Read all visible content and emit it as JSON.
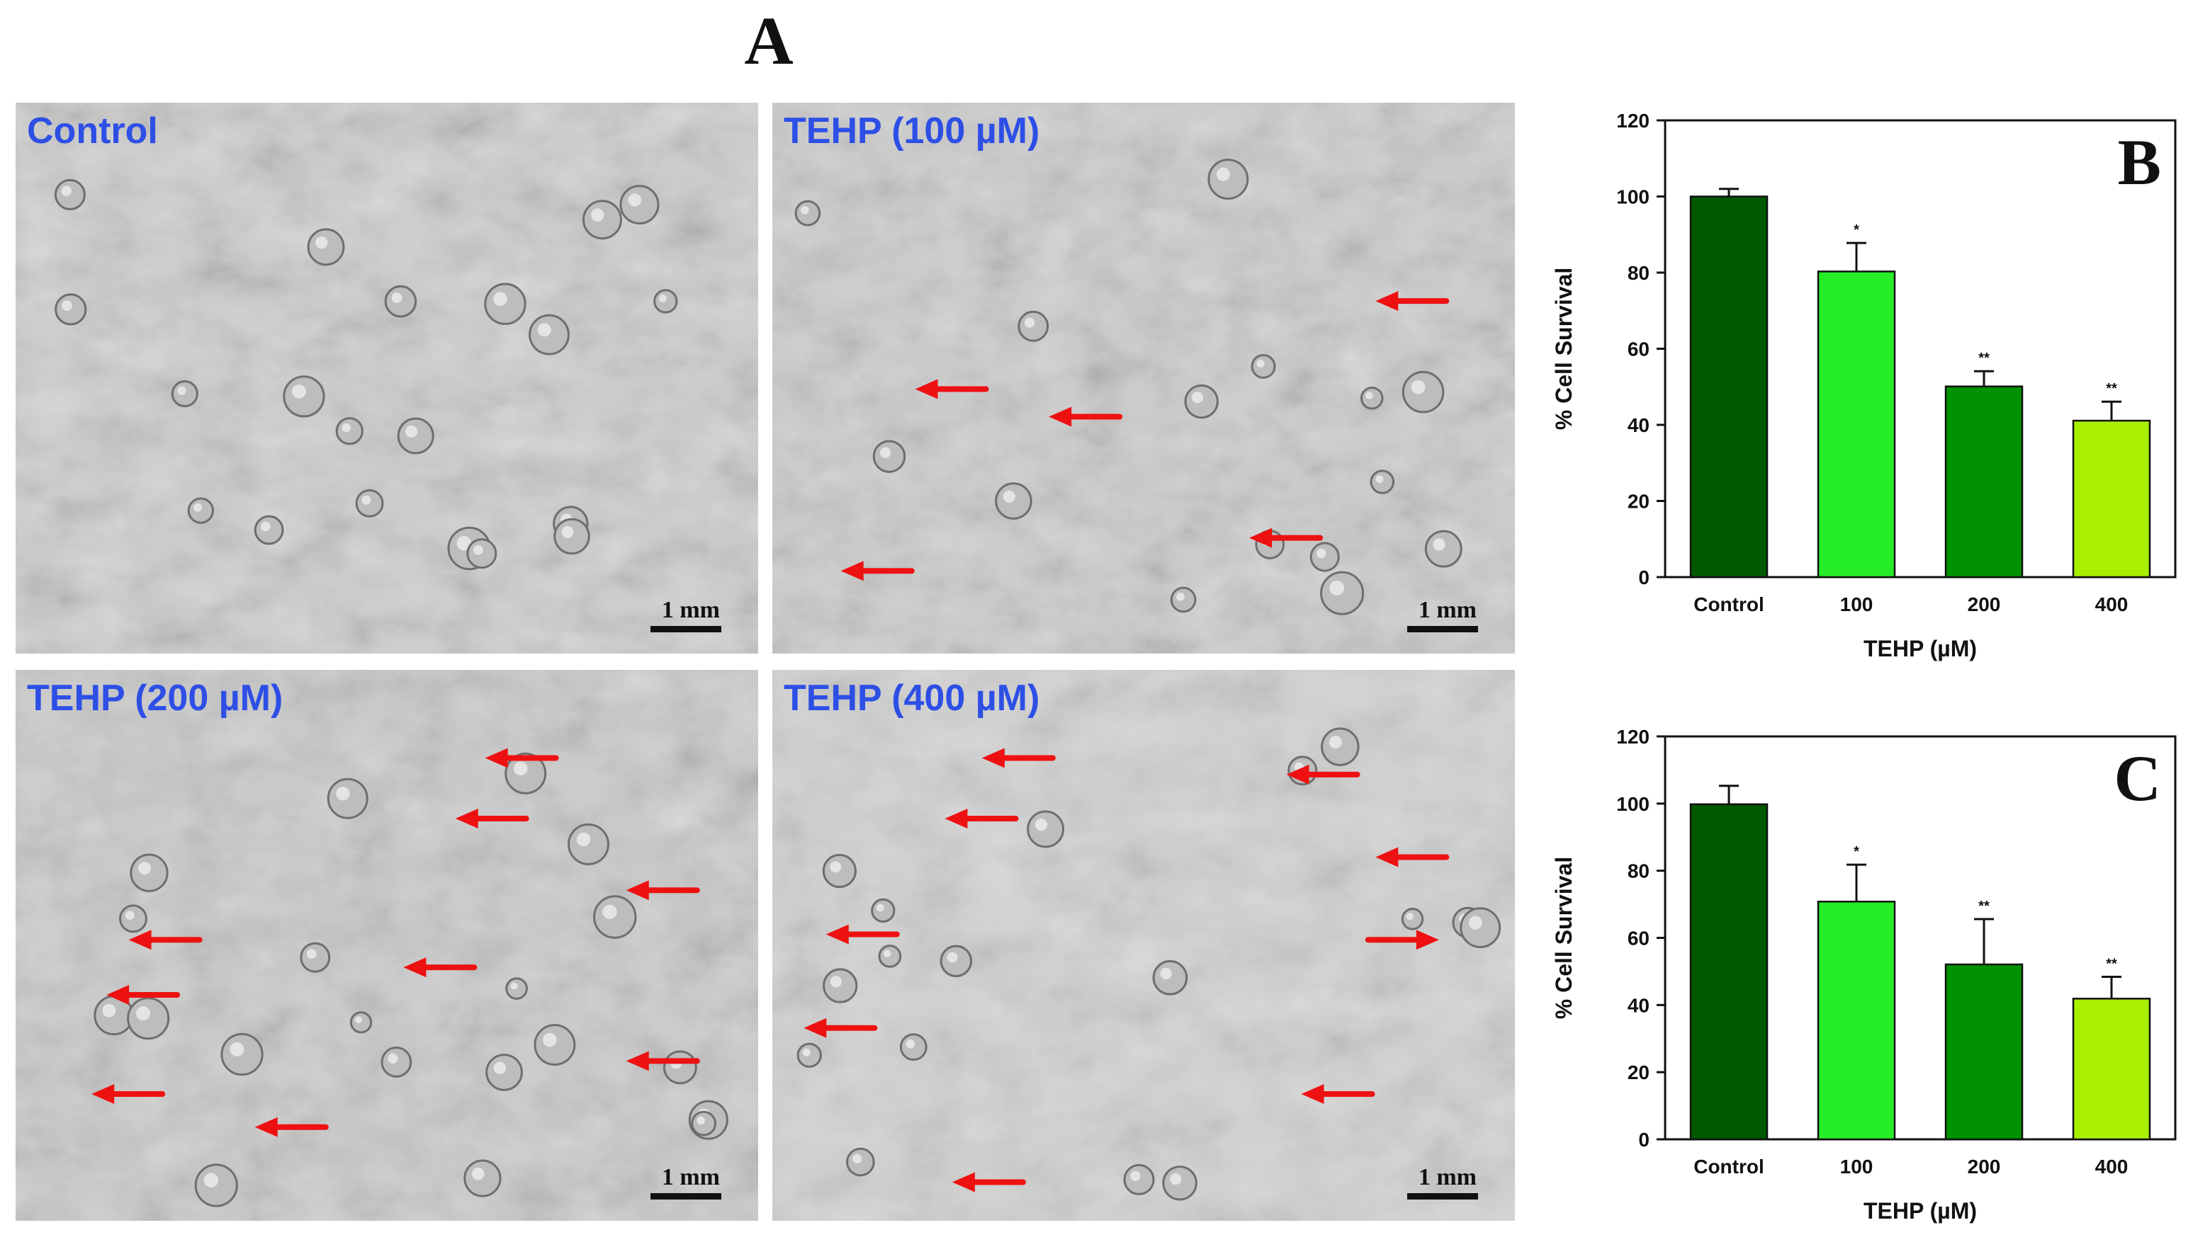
{
  "figure": {
    "panel_a_title": "A"
  },
  "panels": [
    {
      "label": "Control",
      "scale_label": "1 mm",
      "arrows": []
    },
    {
      "label": "TEHP (100 µM)",
      "scale_label": "1 mm",
      "arrows": [
        [
          0.86,
          0.36,
          "left"
        ],
        [
          0.24,
          0.52,
          "left"
        ],
        [
          0.42,
          0.57,
          "left"
        ],
        [
          0.69,
          0.79,
          "left"
        ],
        [
          0.14,
          0.85,
          "left"
        ]
      ]
    },
    {
      "label": "TEHP (200 µM)",
      "scale_label": "1 mm",
      "arrows": [
        [
          0.68,
          0.16,
          "left"
        ],
        [
          0.64,
          0.27,
          "left"
        ],
        [
          0.2,
          0.49,
          "left"
        ],
        [
          0.57,
          0.54,
          "left"
        ],
        [
          0.87,
          0.4,
          "left"
        ],
        [
          0.17,
          0.59,
          "left"
        ],
        [
          0.15,
          0.77,
          "left"
        ],
        [
          0.37,
          0.83,
          "left"
        ],
        [
          0.87,
          0.71,
          "left"
        ]
      ]
    },
    {
      "label": "TEHP (400 µM)",
      "scale_label": "1 mm",
      "arrows": [
        [
          0.33,
          0.16,
          "left"
        ],
        [
          0.28,
          0.27,
          "left"
        ],
        [
          0.74,
          0.19,
          "left"
        ],
        [
          0.86,
          0.34,
          "left"
        ],
        [
          0.12,
          0.48,
          "left"
        ],
        [
          0.85,
          0.49,
          "right"
        ],
        [
          0.09,
          0.65,
          "left"
        ],
        [
          0.76,
          0.77,
          "left"
        ],
        [
          0.29,
          0.93,
          "left"
        ]
      ]
    }
  ],
  "chart_data": [
    {
      "type": "bar",
      "panel_letter": "B",
      "categories": [
        "Control",
        "100",
        "200",
        "400"
      ],
      "values": [
        100,
        80.3,
        50.1,
        41.1
      ],
      "errors": [
        2,
        7.5,
        4,
        5
      ],
      "significance": [
        "",
        "*",
        "**",
        "**"
      ],
      "colors": [
        "#005800",
        "#26ee26",
        "#009200",
        "#a8f000"
      ],
      "xlabel": "TEHP (µM)",
      "ylabel": "% Cell Survival",
      "ylim": [
        0,
        120
      ],
      "yticks": [
        0,
        20,
        40,
        60,
        80,
        100,
        120
      ],
      "grid": false
    },
    {
      "type": "bar",
      "panel_letter": "C",
      "categories": [
        "Control",
        "100",
        "200",
        "400"
      ],
      "values": [
        99.8,
        70.8,
        52.1,
        41.9
      ],
      "errors": [
        5.5,
        11,
        13.5,
        6.5
      ],
      "significance": [
        "",
        "*",
        "**",
        "**"
      ],
      "colors": [
        "#005800",
        "#26ee26",
        "#009200",
        "#a8f000"
      ],
      "xlabel": "TEHP (µM)",
      "ylabel": "% Cell Survival",
      "ylim": [
        0,
        120
      ],
      "yticks": [
        0,
        20,
        40,
        60,
        80,
        100,
        120
      ],
      "grid": false
    }
  ]
}
